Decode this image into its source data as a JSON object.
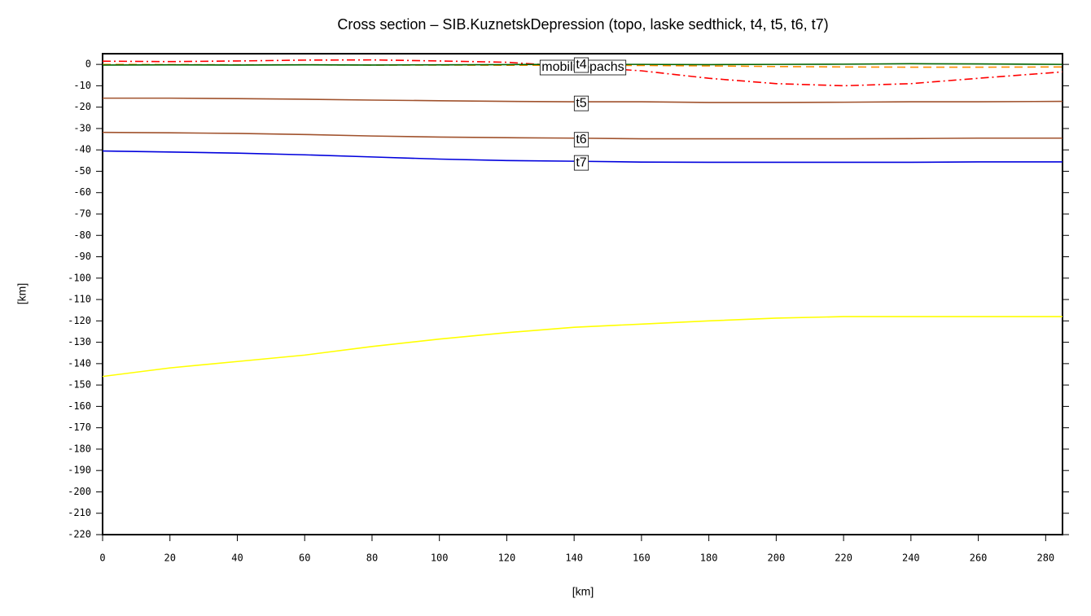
{
  "chart_data": {
    "type": "line",
    "title": "Cross section – SIB.KuznetskDepression (topo, laske sedthick, t4, t5, t6, t7)",
    "xlabel": "[km]",
    "ylabel": "[km]",
    "annotation": "mobilisopachs",
    "x": [
      0,
      20,
      40,
      60,
      80,
      100,
      120,
      140,
      160,
      180,
      200,
      220,
      240,
      260,
      285
    ],
    "series": [
      {
        "name": null,
        "color": "#ffff00",
        "style": "solid",
        "values": [
          -146,
          -142,
          -139,
          -136,
          -132,
          -128.5,
          -125.5,
          -123,
          -121.5,
          -120,
          -118.7,
          -118,
          -118,
          -118,
          -118
        ]
      },
      {
        "name": "t7",
        "color": "#0000dd",
        "style": "solid",
        "values": [
          -40.5,
          -41,
          -41.5,
          -42.3,
          -43.3,
          -44.3,
          -45,
          -45.3,
          -45.7,
          -45.8,
          -45.8,
          -45.8,
          -45.8,
          -45.6,
          -45.6
        ]
      },
      {
        "name": "t6",
        "color": "#a0522d",
        "style": "solid",
        "values": [
          -31.8,
          -32,
          -32.3,
          -32.8,
          -33.5,
          -34,
          -34.3,
          -34.5,
          -34.8,
          -34.8,
          -34.8,
          -34.8,
          -34.7,
          -34.5,
          -34.5
        ]
      },
      {
        "name": "t5",
        "color": "#a0522d",
        "style": "solid",
        "values": [
          -15.8,
          -15.8,
          -16,
          -16.3,
          -16.7,
          -17,
          -17.3,
          -17.5,
          -17.5,
          -17.8,
          -17.8,
          -17.7,
          -17.5,
          -17.5,
          -17.3
        ]
      },
      {
        "name": "t4",
        "color": "#ff0000",
        "style": "dashdot",
        "values": [
          1.5,
          1.3,
          1.6,
          2,
          2.1,
          1.6,
          1,
          -1,
          -3,
          -6.5,
          -9,
          -10,
          -9,
          -6.5,
          -3.5
        ]
      },
      {
        "name": null,
        "color": "#ff8c00",
        "style": "dashed",
        "values": [
          0,
          -0.1,
          -0.2,
          -0.2,
          -0.3,
          -0.3,
          -0.4,
          -0.4,
          -0.5,
          -0.7,
          -1,
          -1.2,
          -1.3,
          -1.3,
          -1.2
        ]
      },
      {
        "name": null,
        "color": "#006400",
        "style": "solid",
        "values": [
          -0.3,
          -0.2,
          -0.3,
          -0.2,
          -0.3,
          -0.2,
          -0.1,
          0,
          0,
          -0.1,
          0,
          0.1,
          0.3,
          0.2,
          0
        ]
      }
    ],
    "xlim": [
      0,
      285
    ],
    "ylim": [
      -220,
      5
    ],
    "xticks": [
      0,
      20,
      40,
      60,
      80,
      100,
      120,
      140,
      160,
      180,
      200,
      220,
      240,
      260,
      280
    ],
    "yticks": [
      0,
      -10,
      -20,
      -30,
      -40,
      -50,
      -60,
      -70,
      -80,
      -90,
      -100,
      -110,
      -120,
      -130,
      -140,
      -150,
      -160,
      -170,
      -180,
      -190,
      -200,
      -210,
      -220
    ]
  }
}
